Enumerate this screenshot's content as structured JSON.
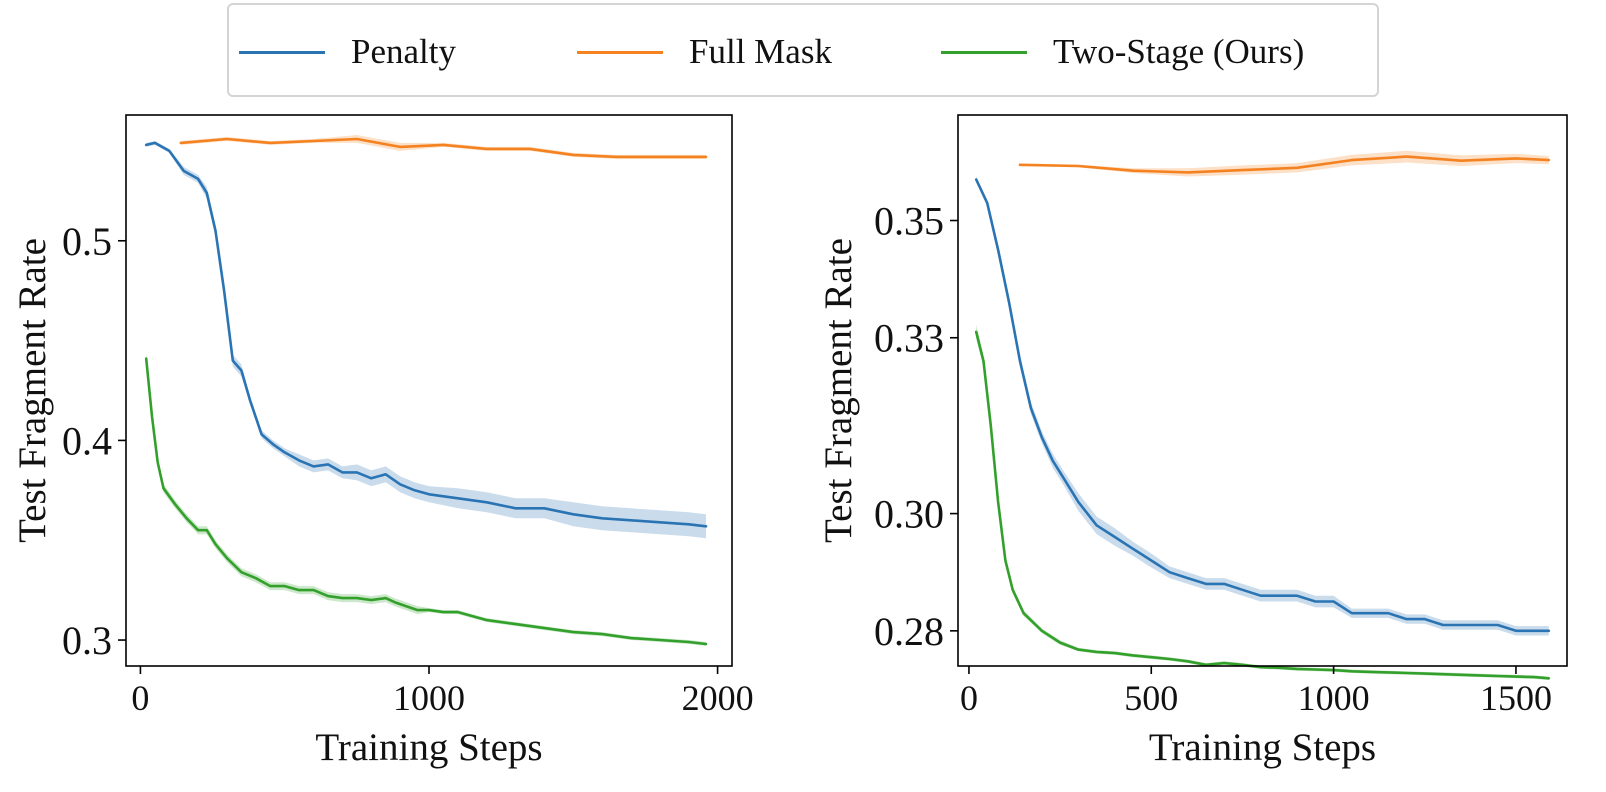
{
  "legend": {
    "entries": [
      {
        "label": "Penalty",
        "color": "#2a74b4"
      },
      {
        "label": "Full Mask",
        "color": "#f58220"
      },
      {
        "label": "Two-Stage (Ours)",
        "color": "#33a02c"
      }
    ]
  },
  "chart_data": [
    {
      "type": "line",
      "xlabel": "Training Steps",
      "ylabel": "Test Fragment Rate",
      "xlim": [
        -50,
        2050
      ],
      "ylim": [
        0.287,
        0.563
      ],
      "xticks": [
        0,
        1000,
        2000
      ],
      "xtick_labels": [
        "0",
        "1000",
        "2000"
      ],
      "yticks": [
        0.3,
        0.4,
        0.5
      ],
      "ytick_labels": [
        "0.3",
        "0.4",
        "0.5"
      ],
      "grid": false,
      "legend_position": "top-center (shared)",
      "series": [
        {
          "name": "Penalty",
          "color": "#2a74b4",
          "x": [
            20,
            50,
            100,
            150,
            200,
            230,
            260,
            290,
            320,
            350,
            380,
            420,
            460,
            500,
            550,
            600,
            650,
            700,
            750,
            800,
            850,
            900,
            950,
            1000,
            1100,
            1200,
            1300,
            1400,
            1500,
            1600,
            1700,
            1800,
            1900,
            1960
          ],
          "y": [
            0.548,
            0.549,
            0.545,
            0.535,
            0.531,
            0.524,
            0.505,
            0.475,
            0.44,
            0.435,
            0.42,
            0.403,
            0.398,
            0.394,
            0.39,
            0.387,
            0.388,
            0.384,
            0.384,
            0.381,
            0.383,
            0.378,
            0.375,
            0.373,
            0.371,
            0.369,
            0.366,
            0.366,
            0.363,
            0.361,
            0.36,
            0.359,
            0.358,
            0.357
          ],
          "band": [
            0.001,
            0.001,
            0.001,
            0.002,
            0.002,
            0.003,
            0.003,
            0.003,
            0.003,
            0.003,
            0.002,
            0.002,
            0.002,
            0.002,
            0.003,
            0.003,
            0.003,
            0.003,
            0.004,
            0.004,
            0.004,
            0.004,
            0.004,
            0.004,
            0.005,
            0.005,
            0.005,
            0.005,
            0.006,
            0.006,
            0.006,
            0.006,
            0.006,
            0.006
          ]
        },
        {
          "name": "Full Mask",
          "color": "#f58220",
          "x": [
            140,
            300,
            450,
            600,
            750,
            900,
            1050,
            1200,
            1350,
            1500,
            1650,
            1800,
            1960
          ],
          "y": [
            0.549,
            0.551,
            0.549,
            0.55,
            0.551,
            0.547,
            0.548,
            0.546,
            0.546,
            0.543,
            0.542,
            0.542,
            0.542
          ],
          "band": [
            0.001,
            0.001,
            0.001,
            0.001,
            0.002,
            0.002,
            0.001,
            0.001,
            0.001,
            0.001,
            0.001,
            0.001,
            0.001
          ]
        },
        {
          "name": "Two-Stage (Ours)",
          "color": "#33a02c",
          "x": [
            20,
            40,
            60,
            80,
            120,
            160,
            200,
            230,
            260,
            300,
            350,
            400,
            450,
            500,
            550,
            600,
            650,
            700,
            750,
            800,
            850,
            880,
            920,
            960,
            1000,
            1050,
            1100,
            1200,
            1300,
            1400,
            1500,
            1600,
            1700,
            1800,
            1900,
            1960
          ],
          "y": [
            0.441,
            0.412,
            0.389,
            0.376,
            0.368,
            0.361,
            0.355,
            0.355,
            0.348,
            0.341,
            0.334,
            0.331,
            0.327,
            0.327,
            0.325,
            0.325,
            0.322,
            0.321,
            0.321,
            0.32,
            0.321,
            0.319,
            0.317,
            0.315,
            0.315,
            0.314,
            0.314,
            0.31,
            0.308,
            0.306,
            0.304,
            0.303,
            0.301,
            0.3,
            0.299,
            0.298
          ],
          "band": [
            0.003,
            0.003,
            0.002,
            0.002,
            0.002,
            0.002,
            0.002,
            0.002,
            0.002,
            0.002,
            0.002,
            0.002,
            0.002,
            0.002,
            0.002,
            0.002,
            0.002,
            0.002,
            0.002,
            0.002,
            0.002,
            0.002,
            0.002,
            0.002,
            0.001,
            0.001,
            0.001,
            0.001,
            0.001,
            0.001,
            0.001,
            0.001,
            0.001,
            0.001,
            0.001,
            0.001
          ]
        }
      ]
    },
    {
      "type": "line",
      "xlabel": "Training Steps",
      "ylabel": "Test Fragment Rate",
      "xlim": [
        -30,
        1640
      ],
      "ylim": [
        0.274,
        0.368
      ],
      "xticks": [
        0,
        500,
        1000,
        1500
      ],
      "xtick_labels": [
        "0",
        "500",
        "1000",
        "1500"
      ],
      "yticks": [
        0.28,
        0.3,
        0.33,
        0.35
      ],
      "ytick_labels": [
        "0.28",
        "0.30",
        "0.33",
        "0.35"
      ],
      "grid": false,
      "legend_position": "top-center (shared)",
      "series": [
        {
          "name": "Penalty",
          "color": "#2a74b4",
          "x": [
            20,
            50,
            80,
            110,
            140,
            170,
            200,
            230,
            260,
            300,
            350,
            400,
            450,
            500,
            550,
            600,
            650,
            700,
            750,
            800,
            850,
            900,
            950,
            1000,
            1050,
            1100,
            1150,
            1200,
            1250,
            1300,
            1350,
            1400,
            1450,
            1500,
            1550,
            1590
          ],
          "y": [
            0.357,
            0.353,
            0.345,
            0.336,
            0.326,
            0.318,
            0.313,
            0.309,
            0.306,
            0.302,
            0.298,
            0.296,
            0.294,
            0.292,
            0.29,
            0.289,
            0.288,
            0.288,
            0.287,
            0.286,
            0.286,
            0.286,
            0.285,
            0.285,
            0.283,
            0.283,
            0.283,
            0.282,
            0.282,
            0.281,
            0.281,
            0.281,
            0.281,
            0.28,
            0.28,
            0.28
          ],
          "band": [
            0.0005,
            0.0005,
            0.001,
            0.001,
            0.001,
            0.001,
            0.001,
            0.0012,
            0.0012,
            0.0015,
            0.0015,
            0.0015,
            0.0012,
            0.0012,
            0.001,
            0.001,
            0.001,
            0.001,
            0.001,
            0.001,
            0.001,
            0.001,
            0.001,
            0.001,
            0.0008,
            0.0008,
            0.0008,
            0.0008,
            0.0008,
            0.0008,
            0.0008,
            0.0008,
            0.0008,
            0.0008,
            0.0008,
            0.0008
          ]
        },
        {
          "name": "Full Mask",
          "color": "#f58220",
          "x": [
            140,
            300,
            450,
            600,
            750,
            900,
            1050,
            1200,
            1350,
            1500,
            1590
          ],
          "y": [
            0.3595,
            0.3593,
            0.3585,
            0.3582,
            0.3586,
            0.359,
            0.3603,
            0.3609,
            0.3602,
            0.3606,
            0.3603
          ],
          "band": [
            0.0002,
            0.0002,
            0.0004,
            0.0007,
            0.0008,
            0.0008,
            0.0009,
            0.001,
            0.0009,
            0.0008,
            0.0007
          ]
        },
        {
          "name": "Two-Stage (Ours)",
          "color": "#33a02c",
          "x": [
            20,
            40,
            60,
            80,
            100,
            120,
            150,
            200,
            250,
            300,
            350,
            400,
            450,
            500,
            550,
            600,
            650,
            700,
            750,
            800,
            850,
            900,
            950,
            1000,
            1050,
            1100,
            1150,
            1200,
            1250,
            1300,
            1350,
            1400,
            1450,
            1500,
            1550,
            1590
          ],
          "y": [
            0.331,
            0.326,
            0.315,
            0.302,
            0.292,
            0.287,
            0.283,
            0.28,
            0.278,
            0.2768,
            0.2764,
            0.2762,
            0.2758,
            0.2755,
            0.2752,
            0.2748,
            0.2742,
            0.2745,
            0.2742,
            0.2738,
            0.2737,
            0.2735,
            0.2734,
            0.2733,
            0.2731,
            0.273,
            0.2729,
            0.2728,
            0.2727,
            0.2726,
            0.2725,
            0.2724,
            0.2723,
            0.2722,
            0.2721,
            0.2719
          ],
          "band": [
            0.0012,
            0.001,
            0.001,
            0.001,
            0.0008,
            0.0006,
            0.0005,
            0.0004,
            0.0004,
            0.0003,
            0.0003,
            0.0003,
            0.0003,
            0.0003,
            0.0003,
            0.0003,
            0.0003,
            0.0003,
            0.0003,
            0.0003,
            0.0003,
            0.0003,
            0.0003,
            0.0003,
            0.0003,
            0.0003,
            0.0003,
            0.0003,
            0.0003,
            0.0003,
            0.0003,
            0.0003,
            0.0003,
            0.0003,
            0.0003,
            0.0003
          ]
        }
      ]
    }
  ]
}
